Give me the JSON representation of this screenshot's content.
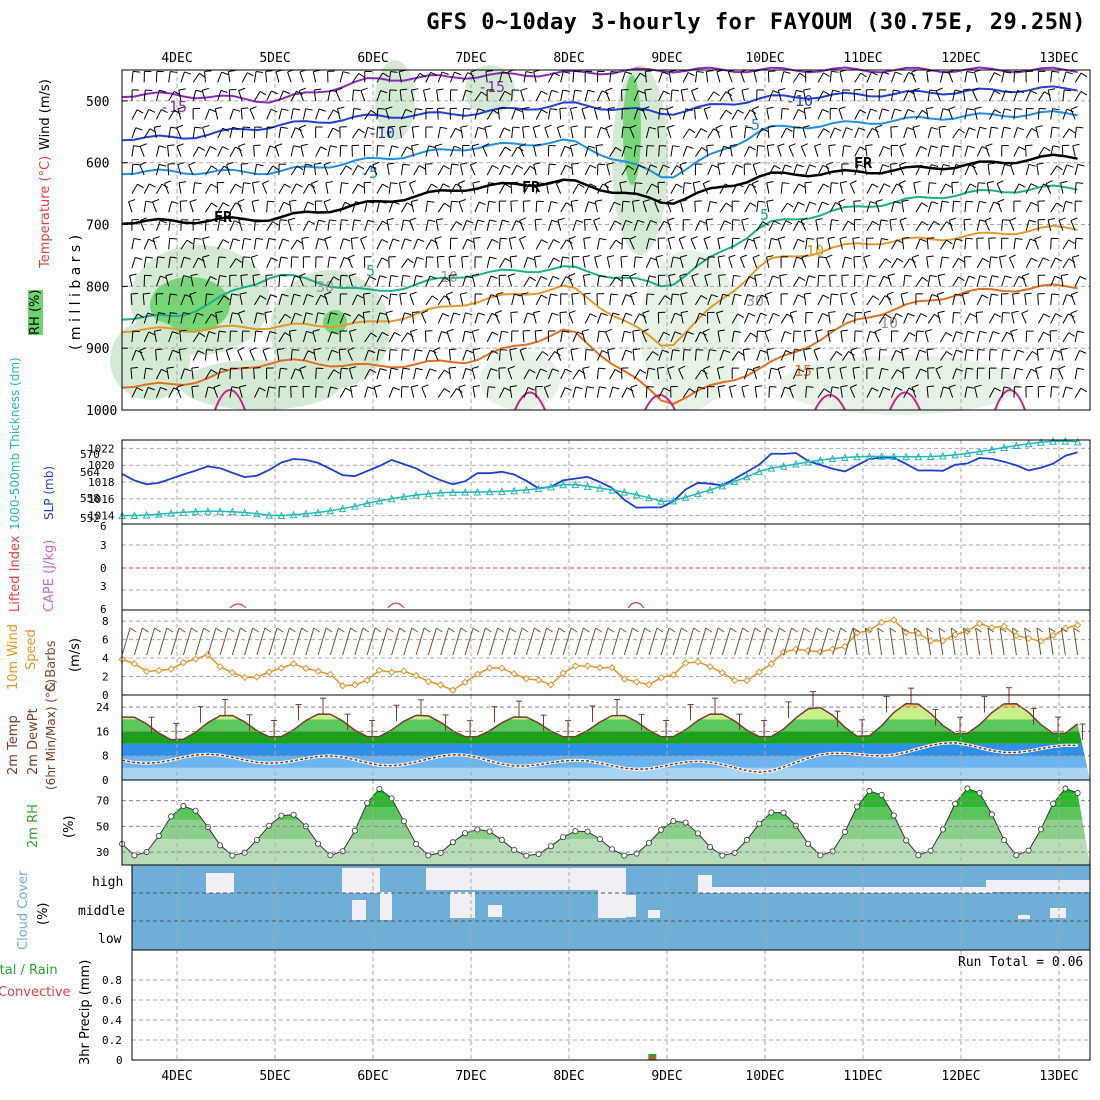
{
  "title": "GFS 0~10day 3-hourly for FAYOUM (30.75E, 29.25N)",
  "dates": [
    "4DEC",
    "5DEC",
    "6DEC",
    "7DEC",
    "8DEC",
    "9DEC",
    "10DEC",
    "11DEC",
    "12DEC",
    "13DEC"
  ],
  "colors": {
    "rh_green": "#6cd46c",
    "slp": "#1f3fd0",
    "thickness": "#22b8b8",
    "cape": "#cc66cc",
    "lifted_index": "#e84040",
    "wind": "#e0962a",
    "barb": "#7a5030",
    "temp": "#7b3b2a",
    "dewpt": "#7b3b2a",
    "rh2m": "#2aa52a",
    "cloud": "#6faed6",
    "precip_total": "#2aa52a",
    "precip_conv": "#e84040"
  },
  "panels": {
    "upper": {
      "ylabel_parts": [
        "RH (%)",
        "Temperature (°C)",
        "Wind (m/s)"
      ],
      "yaxis_label": "( m i l l i b a r s )",
      "ticks": [
        "500",
        "600",
        "700",
        "800",
        "900",
        "1000"
      ],
      "contour_labels": [
        "-15",
        "-15",
        "-10",
        "-10",
        "-5",
        "-5",
        "-5",
        "0",
        "FR",
        "FR",
        "FR",
        "5",
        "5",
        "10",
        "10",
        "15",
        "30",
        "30",
        "30",
        "10",
        "10"
      ]
    },
    "slp": {
      "ylabel_left": "1000-500mb Thickness (dm)",
      "ylabel_right": "SLP (mb)",
      "ticks_left": [
        "570",
        "564",
        "558",
        "552"
      ],
      "ticks_right": [
        "1022",
        "1020",
        "1018",
        "1016",
        "1014"
      ]
    },
    "cape": {
      "ylabel_left": "Lifted Index",
      "ylabel_right": "CAPE (J/kg)",
      "ticks": [
        "6",
        "3",
        "0",
        "3",
        "6"
      ]
    },
    "wind": {
      "ylabel": "10m Wind Speed & Barbs (m/s)",
      "ylabel_parts": [
        "10m Wind",
        "Speed",
        "& Barbs",
        "(m/s)"
      ],
      "ticks": [
        "8",
        "6",
        "4",
        "2",
        "0"
      ]
    },
    "temp": {
      "ylabel_parts": [
        "2m Temp",
        "2m DewPt",
        "(6hr Min/Max) (°C)"
      ],
      "ticks": [
        "24",
        "16",
        "8",
        "0"
      ]
    },
    "rh2m": {
      "ylabel_parts": [
        "2m RH",
        "(%)"
      ],
      "ticks": [
        "70",
        "50",
        "30"
      ]
    },
    "cloud": {
      "ylabel_parts": [
        "Cloud Cover",
        "(%)"
      ],
      "levels": [
        "high",
        "middle",
        "low"
      ]
    },
    "precip": {
      "ylabel_parts": [
        "Total / Rain",
        "Convective",
        "3hr Precip (mm)"
      ],
      "ticks": [
        "0.8",
        "0.6",
        "0.4",
        "0.2",
        "0"
      ],
      "run_total": "Run Total = 0.06"
    }
  },
  "chart_data": [
    {
      "type": "line",
      "title": "SLP / 1000-500mb Thickness",
      "x": [
        "4DEC",
        "5DEC",
        "6DEC",
        "7DEC",
        "8DEC",
        "9DEC",
        "10DEC",
        "11DEC",
        "12DEC",
        "13DEC"
      ],
      "series": [
        {
          "name": "SLP (mb)",
          "values": [
            1018.5,
            1019.8,
            1019.8,
            1018.5,
            1018.3,
            1015.0,
            1020.8,
            1020.2,
            1020.0,
            1020.5
          ]
        },
        {
          "name": "1000-500mb Thickness (dm)",
          "values": [
            553,
            552,
            556,
            558,
            561,
            555,
            565,
            567,
            569,
            571
          ]
        }
      ],
      "ylim_left": [
        550,
        572
      ],
      "ylim_right": [
        1013,
        1023
      ]
    },
    {
      "type": "line",
      "title": "10m Wind Speed",
      "x": [
        "4DEC",
        "5DEC",
        "6DEC",
        "7DEC",
        "8DEC",
        "9DEC",
        "10DEC",
        "11DEC",
        "12DEC",
        "13DEC"
      ],
      "series": [
        {
          "name": "10m Wind Speed (m/s)",
          "values": [
            3.5,
            2.5,
            2.0,
            1.5,
            2.5,
            2.0,
            3.0,
            7.0,
            6.5,
            7.0
          ]
        }
      ],
      "ylim": [
        0,
        9
      ]
    },
    {
      "type": "area",
      "title": "2m Temp / DewPt",
      "x": [
        "4DEC",
        "5DEC",
        "6DEC",
        "7DEC",
        "8DEC",
        "9DEC",
        "10DEC",
        "11DEC",
        "12DEC",
        "13DEC"
      ],
      "series": [
        {
          "name": "2m Temp max (°C)",
          "values": [
            21,
            22,
            22,
            21,
            21,
            22,
            22,
            26,
            25,
            26
          ]
        },
        {
          "name": "2m Temp min (°C)",
          "values": [
            13,
            14,
            14,
            14,
            14,
            14,
            14,
            14,
            15,
            15
          ]
        },
        {
          "name": "2m DewPt (°C)",
          "values": [
            7,
            7,
            6,
            7,
            5,
            5,
            4,
            9,
            11,
            10
          ]
        }
      ],
      "ylim": [
        0,
        28
      ]
    },
    {
      "type": "area",
      "title": "2m RH",
      "x": [
        "4DEC",
        "5DEC",
        "6DEC",
        "7DEC",
        "8DEC",
        "9DEC",
        "10DEC",
        "11DEC",
        "12DEC",
        "13DEC"
      ],
      "series": [
        {
          "name": "2m RH max (%)",
          "values": [
            67,
            57,
            82,
            48,
            46,
            54,
            60,
            78,
            80,
            80
          ]
        }
      ],
      "ylim": [
        20,
        85
      ]
    },
    {
      "type": "bar",
      "title": "3hr Precip",
      "categories": [
        "8.9DEC"
      ],
      "values": [
        0.06
      ],
      "ylim": [
        0,
        1
      ]
    }
  ]
}
